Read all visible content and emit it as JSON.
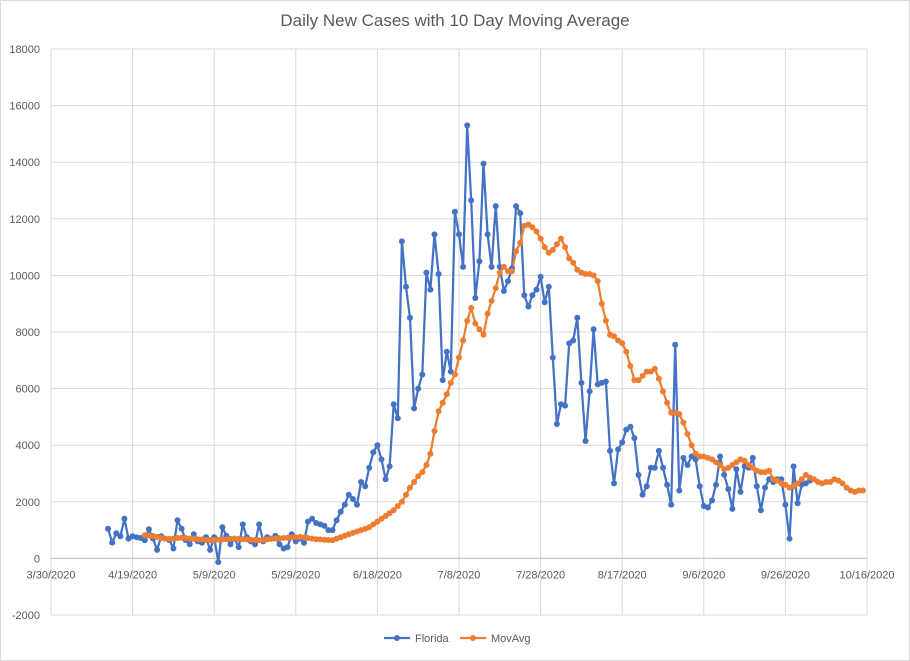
{
  "chart_data": {
    "type": "line",
    "title": "Daily New Cases with 10 Day Moving Average",
    "xlabel": "",
    "ylabel": "",
    "x_start": "4/13/2020",
    "x_range_days": [
      0,
      200
    ],
    "x_tick_labels": [
      "3/30/2020",
      "4/19/2020",
      "5/9/2020",
      "5/29/2020",
      "6/18/2020",
      "7/8/2020",
      "7/28/2020",
      "8/17/2020",
      "9/6/2020",
      "9/26/2020",
      "10/16/2020"
    ],
    "ylim": [
      -2000,
      18000
    ],
    "y_tick_labels": [
      "-2000",
      "0",
      "2000",
      "4000",
      "6000",
      "8000",
      "10000",
      "12000",
      "14000",
      "16000",
      "18000"
    ],
    "grid": true,
    "legend_position": "bottom",
    "colors": {
      "Florida": "#4472c4",
      "MovAvg": "#ed7d31",
      "grid": "#d9d9d9",
      "text": "#595959"
    },
    "series": [
      {
        "name": "Florida",
        "start_day": 14,
        "values": [
          1050,
          560,
          890,
          780,
          1400,
          700,
          780,
          750,
          720,
          640,
          1030,
          700,
          300,
          780,
          700,
          650,
          350,
          1350,
          1050,
          650,
          500,
          850,
          600,
          550,
          750,
          300,
          750,
          -130,
          1100,
          800,
          500,
          700,
          400,
          1200,
          750,
          600,
          500,
          1200,
          600,
          750,
          700,
          800,
          500,
          350,
          400,
          850,
          600,
          700,
          550,
          1300,
          1400,
          1250,
          1200,
          1150,
          1000,
          1000,
          1350,
          1650,
          1900,
          2250,
          2100,
          1900,
          2700,
          2550,
          3200,
          3750,
          4000,
          3500,
          2800,
          3250,
          5450,
          4950,
          11200,
          9600,
          8500,
          5300,
          6000,
          6500,
          10100,
          9500,
          11450,
          10050,
          6300,
          7300,
          6600,
          12250,
          11450,
          10300,
          15300,
          12650,
          9200,
          10500,
          13950,
          11450,
          10300,
          12450,
          10300,
          9450,
          9800,
          10250,
          12450,
          12200,
          9300,
          8900,
          9300,
          9500,
          9950,
          9050,
          9600,
          7100,
          4750,
          5450,
          5400,
          7600,
          7700,
          8500,
          6200,
          4150,
          5900,
          8100,
          6150,
          6200,
          6250,
          3800,
          2650,
          3850,
          4100,
          4550,
          4650,
          4250,
          2950,
          2250,
          2550,
          3200,
          3200,
          3800,
          3200,
          2600,
          1900,
          7550,
          2400,
          3550,
          3300,
          3600,
          3500,
          2550,
          1850,
          1800,
          2050,
          2600,
          3600,
          2950,
          2450,
          1750,
          3150,
          2350,
          3250,
          3200,
          3550,
          2550,
          1700,
          2500,
          2800,
          2700,
          2800,
          2800,
          1900,
          700,
          3250,
          1950,
          2600,
          2650,
          2750
        ]
      },
      {
        "name": "MovAvg",
        "start_day": 23,
        "values": [
          820,
          810,
          790,
          760,
          720,
          700,
          690,
          700,
          720,
          730,
          720,
          700,
          690,
          680,
          670,
          650,
          640,
          650,
          660,
          670,
          680,
          690,
          700,
          690,
          680,
          670,
          660,
          650,
          640,
          650,
          670,
          690,
          700,
          710,
          720,
          730,
          740,
          750,
          760,
          740,
          720,
          700,
          680,
          670,
          660,
          650,
          640,
          700,
          750,
          800,
          850,
          900,
          950,
          1000,
          1050,
          1100,
          1200,
          1300,
          1400,
          1500,
          1600,
          1700,
          1850,
          2000,
          2250,
          2500,
          2700,
          2900,
          3050,
          3300,
          3700,
          4500,
          5200,
          5500,
          5800,
          6200,
          6500,
          7100,
          7700,
          8400,
          8850,
          8300,
          8100,
          7900,
          8650,
          9100,
          9550,
          10100,
          10300,
          10150,
          10150,
          10850,
          11150,
          11750,
          11800,
          11700,
          11550,
          11300,
          11000,
          10800,
          10900,
          11100,
          11300,
          11000,
          10600,
          10450,
          10200,
          10100,
          10050,
          10050,
          10000,
          9800,
          9000,
          8400,
          7900,
          7850,
          7700,
          7600,
          7300,
          6800,
          6300,
          6300,
          6450,
          6600,
          6600,
          6700,
          6350,
          5900,
          5500,
          5150,
          5150,
          5100,
          4800,
          4400,
          4000,
          3700,
          3600,
          3600,
          3550,
          3500,
          3400,
          3300,
          3150,
          3200,
          3300,
          3400,
          3500,
          3450,
          3300,
          3200,
          3100,
          3050,
          3050,
          3100,
          2800,
          2750,
          2650,
          2600,
          2500,
          2550,
          2650,
          2800,
          2950,
          2850,
          2800,
          2700,
          2650,
          2700,
          2700,
          2800,
          2750,
          2650,
          2500,
          2400,
          2350,
          2400,
          2400
        ]
      }
    ]
  }
}
